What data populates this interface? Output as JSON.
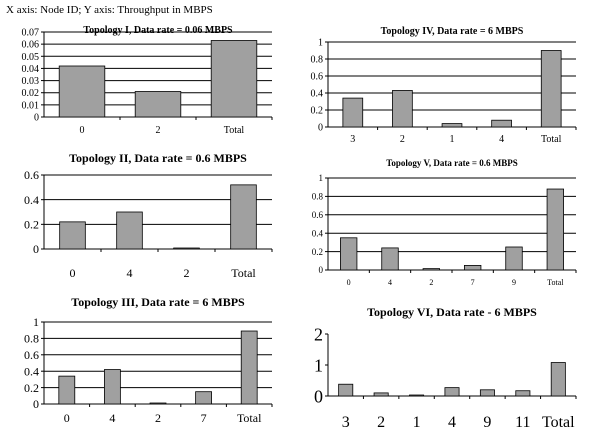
{
  "caption": "X axis: Node ID; Y axis: Throughput in MBPS",
  "colors": {
    "bar": "#a0a0a0",
    "stroke": "#000000",
    "grid": "#000000"
  },
  "chart_data": [
    {
      "type": "bar",
      "title": "Topology I, Data rate = 0.06 MBPS",
      "categories": [
        "0",
        "2",
        "Total"
      ],
      "values": [
        0.042,
        0.021,
        0.063
      ],
      "ylim": [
        0,
        0.07
      ],
      "yticks": [
        "0",
        "0.01",
        "0.02",
        "0.03",
        "0.04",
        "0.05",
        "0.06",
        "0.07"
      ],
      "grid": true
    },
    {
      "type": "bar",
      "title": "Topology IV, Data rate = 6 MBPS",
      "categories": [
        "3",
        "2",
        "1",
        "4",
        "Total"
      ],
      "values": [
        0.34,
        0.43,
        0.04,
        0.08,
        0.9
      ],
      "ylim": [
        0,
        1
      ],
      "yticks": [
        "0",
        "0.2",
        "0.4",
        "0.6",
        "0.8",
        "1"
      ],
      "grid": true
    },
    {
      "type": "bar",
      "title": "Topology II, Data rate = 0.6 MBPS",
      "categories": [
        "0",
        "4",
        "2",
        "Total"
      ],
      "values": [
        0.22,
        0.3,
        0.005,
        0.52
      ],
      "ylim": [
        0,
        0.6
      ],
      "yticks": [
        "0",
        "0.2",
        "0.4",
        "0.6"
      ],
      "grid": true
    },
    {
      "type": "bar",
      "title": "Topology V, Data rate = 0.6 MBPS",
      "categories": [
        "0",
        "4",
        "2",
        "7",
        "9",
        "Total"
      ],
      "values": [
        0.35,
        0.24,
        0.015,
        0.05,
        0.25,
        0.88
      ],
      "ylim": [
        0,
        1
      ],
      "yticks": [
        "0",
        "0.2",
        "0.4",
        "0.6",
        "0.8",
        "1"
      ],
      "grid": true
    },
    {
      "type": "bar",
      "title": "Topology III, Data rate = 6 MBPS",
      "categories": [
        "0",
        "4",
        "2",
        "7",
        "Total"
      ],
      "values": [
        0.34,
        0.42,
        0.01,
        0.15,
        0.89
      ],
      "ylim": [
        0,
        1
      ],
      "yticks": [
        "0",
        "0.2",
        "0.4",
        "0.6",
        "0.8",
        "1"
      ],
      "grid": true
    },
    {
      "type": "bar",
      "title": "Topology VI, Data rate - 6 MBPS",
      "categories": [
        "3",
        "2",
        "1",
        "4",
        "9",
        "11",
        "Total"
      ],
      "values": [
        0.38,
        0.1,
        0.02,
        0.27,
        0.2,
        0.17,
        1.08
      ],
      "ylim": [
        0,
        2
      ],
      "yticks": [
        "0",
        "1",
        "2"
      ],
      "grid": false
    }
  ]
}
